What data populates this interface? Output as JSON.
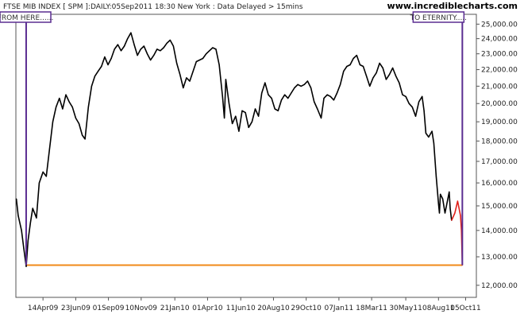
{
  "header": {
    "title": "FTSE MIB INDEX [ SPM ]:DAILY:05Sep2011 18:30 New York : Data Delayed > 15mins",
    "site": "www.incrediblecharts.com"
  },
  "annotations": {
    "from": "FROM HERE......",
    "to": "TO ETERNITY....."
  },
  "colors": {
    "price": "#000000",
    "projection": "#e0201a",
    "support": "#f08a18",
    "marker": "#5a2d91",
    "grid": "#cccccc",
    "frame": "#555555"
  },
  "chart_data": {
    "type": "line",
    "title": "FTSE MIB INDEX [ SPM ]:DAILY:05Sep2011 18:30 New York : Data Delayed > 15mins",
    "xlabel": "",
    "ylabel": "",
    "x_tick_labels": [
      "14Apr09",
      "23Jun09",
      "01Sep09",
      "10Nov09",
      "21Jan10",
      "01Apr10",
      "11Jun10",
      "20Aug10",
      "29Oct10",
      "07Jan11",
      "18Mar11",
      "30May11",
      "08Aug11",
      "05Oct11"
    ],
    "y_tick_labels": [
      "12,000.00",
      "13,000.00",
      "14,000.00",
      "15,000.00",
      "16,000.00",
      "17,000.00",
      "18,000.00",
      "19,000.00",
      "20,000.00",
      "21,000.00",
      "22,000.00",
      "23,000.00",
      "24,000.00",
      "25,000.00"
    ],
    "y_scale": "log",
    "ylim": [
      11600,
      25700
    ],
    "xlim": [
      "2009-02-15",
      "2011-10-28"
    ],
    "grid": false,
    "series": [
      {
        "role": "price",
        "color": "#000000",
        "points": [
          [
            "2009-02-16",
            15300
          ],
          [
            "2009-02-20",
            14600
          ],
          [
            "2009-02-27",
            14000
          ],
          [
            "2009-03-04",
            13300
          ],
          [
            "2009-03-09",
            12650
          ],
          [
            "2009-03-13",
            13600
          ],
          [
            "2009-03-18",
            14300
          ],
          [
            "2009-03-23",
            14900
          ],
          [
            "2009-03-31",
            14500
          ],
          [
            "2009-04-06",
            16000
          ],
          [
            "2009-04-14",
            16500
          ],
          [
            "2009-04-21",
            16300
          ],
          [
            "2009-04-28",
            17600
          ],
          [
            "2009-05-05",
            19000
          ],
          [
            "2009-05-12",
            19800
          ],
          [
            "2009-05-19",
            20300
          ],
          [
            "2009-05-26",
            19700
          ],
          [
            "2009-06-02",
            20500
          ],
          [
            "2009-06-09",
            20100
          ],
          [
            "2009-06-16",
            19800
          ],
          [
            "2009-06-23",
            19200
          ],
          [
            "2009-06-30",
            18900
          ],
          [
            "2009-07-07",
            18300
          ],
          [
            "2009-07-13",
            18100
          ],
          [
            "2009-07-20",
            19800
          ],
          [
            "2009-07-27",
            21000
          ],
          [
            "2009-08-03",
            21600
          ],
          [
            "2009-08-10",
            21900
          ],
          [
            "2009-08-17",
            22200
          ],
          [
            "2009-08-24",
            22800
          ],
          [
            "2009-08-31",
            22300
          ],
          [
            "2009-09-07",
            22700
          ],
          [
            "2009-09-14",
            23300
          ],
          [
            "2009-09-21",
            23600
          ],
          [
            "2009-09-28",
            23200
          ],
          [
            "2009-10-05",
            23500
          ],
          [
            "2009-10-12",
            24000
          ],
          [
            "2009-10-19",
            24400
          ],
          [
            "2009-10-26",
            23600
          ],
          [
            "2009-11-02",
            22900
          ],
          [
            "2009-11-09",
            23300
          ],
          [
            "2009-11-16",
            23500
          ],
          [
            "2009-11-23",
            23000
          ],
          [
            "2009-11-30",
            22600
          ],
          [
            "2009-12-07",
            22900
          ],
          [
            "2009-12-14",
            23300
          ],
          [
            "2009-12-21",
            23200
          ],
          [
            "2009-12-28",
            23400
          ],
          [
            "2010-01-04",
            23700
          ],
          [
            "2010-01-11",
            23900
          ],
          [
            "2010-01-18",
            23500
          ],
          [
            "2010-01-25",
            22400
          ],
          [
            "2010-02-01",
            21700
          ],
          [
            "2010-02-08",
            20900
          ],
          [
            "2010-02-15",
            21500
          ],
          [
            "2010-02-22",
            21300
          ],
          [
            "2010-03-01",
            21900
          ],
          [
            "2010-03-08",
            22500
          ],
          [
            "2010-03-15",
            22600
          ],
          [
            "2010-03-22",
            22700
          ],
          [
            "2010-03-29",
            23000
          ],
          [
            "2010-04-05",
            23200
          ],
          [
            "2010-04-12",
            23400
          ],
          [
            "2010-04-19",
            23300
          ],
          [
            "2010-04-26",
            22300
          ],
          [
            "2010-05-03",
            20400
          ],
          [
            "2010-05-07",
            19200
          ],
          [
            "2010-05-10",
            21400
          ],
          [
            "2010-05-17",
            20000
          ],
          [
            "2010-05-24",
            18900
          ],
          [
            "2010-05-31",
            19300
          ],
          [
            "2010-06-07",
            18500
          ],
          [
            "2010-06-14",
            19600
          ],
          [
            "2010-06-21",
            19500
          ],
          [
            "2010-06-28",
            18700
          ],
          [
            "2010-07-05",
            19000
          ],
          [
            "2010-07-12",
            19700
          ],
          [
            "2010-07-19",
            19300
          ],
          [
            "2010-07-26",
            20600
          ],
          [
            "2010-08-02",
            21200
          ],
          [
            "2010-08-09",
            20500
          ],
          [
            "2010-08-16",
            20300
          ],
          [
            "2010-08-23",
            19700
          ],
          [
            "2010-08-30",
            19600
          ],
          [
            "2010-09-06",
            20200
          ],
          [
            "2010-09-13",
            20500
          ],
          [
            "2010-09-20",
            20300
          ],
          [
            "2010-09-27",
            20600
          ],
          [
            "2010-10-04",
            20900
          ],
          [
            "2010-10-11",
            21100
          ],
          [
            "2010-10-18",
            21000
          ],
          [
            "2010-10-25",
            21100
          ],
          [
            "2010-11-01",
            21300
          ],
          [
            "2010-11-08",
            20900
          ],
          [
            "2010-11-15",
            20100
          ],
          [
            "2010-11-22",
            19700
          ],
          [
            "2010-11-30",
            19200
          ],
          [
            "2010-12-06",
            20300
          ],
          [
            "2010-12-13",
            20500
          ],
          [
            "2010-12-20",
            20400
          ],
          [
            "2010-12-27",
            20200
          ],
          [
            "2011-01-03",
            20600
          ],
          [
            "2011-01-10",
            21100
          ],
          [
            "2011-01-17",
            21900
          ],
          [
            "2011-01-24",
            22200
          ],
          [
            "2011-01-31",
            22300
          ],
          [
            "2011-02-07",
            22700
          ],
          [
            "2011-02-14",
            22900
          ],
          [
            "2011-02-21",
            22300
          ],
          [
            "2011-02-28",
            22200
          ],
          [
            "2011-03-07",
            21600
          ],
          [
            "2011-03-14",
            21000
          ],
          [
            "2011-03-21",
            21500
          ],
          [
            "2011-03-28",
            21800
          ],
          [
            "2011-04-04",
            22400
          ],
          [
            "2011-04-11",
            22100
          ],
          [
            "2011-04-18",
            21400
          ],
          [
            "2011-04-25",
            21700
          ],
          [
            "2011-05-02",
            22100
          ],
          [
            "2011-05-09",
            21600
          ],
          [
            "2011-05-16",
            21200
          ],
          [
            "2011-05-23",
            20500
          ],
          [
            "2011-05-30",
            20400
          ],
          [
            "2011-06-06",
            20000
          ],
          [
            "2011-06-13",
            19800
          ],
          [
            "2011-06-20",
            19300
          ],
          [
            "2011-06-27",
            20100
          ],
          [
            "2011-07-04",
            20400
          ],
          [
            "2011-07-08",
            19600
          ],
          [
            "2011-07-12",
            18400
          ],
          [
            "2011-07-18",
            18200
          ],
          [
            "2011-07-25",
            18500
          ],
          [
            "2011-07-29",
            17900
          ],
          [
            "2011-08-03",
            16300
          ],
          [
            "2011-08-08",
            15100
          ],
          [
            "2011-08-10",
            14700
          ],
          [
            "2011-08-12",
            15500
          ],
          [
            "2011-08-17",
            15300
          ],
          [
            "2011-08-22",
            14700
          ],
          [
            "2011-08-26",
            15100
          ],
          [
            "2011-08-31",
            15600
          ],
          [
            "2011-09-02",
            14900
          ],
          [
            "2011-09-05",
            14400
          ]
        ]
      },
      {
        "role": "projection",
        "color": "#e0201a",
        "points": [
          [
            "2011-09-05",
            14400
          ],
          [
            "2011-09-12",
            14700
          ],
          [
            "2011-09-18",
            15200
          ],
          [
            "2011-09-24",
            14600
          ],
          [
            "2011-09-26",
            14000
          ],
          [
            "2011-09-28",
            12700
          ]
        ]
      }
    ],
    "support_level": 12700,
    "support_range": [
      "2009-03-09",
      "2011-09-28"
    ],
    "markers": [
      {
        "date": "2009-03-09",
        "label": "FROM HERE......"
      },
      {
        "date": "2011-09-28",
        "label": "TO ETERNITY....."
      }
    ]
  }
}
